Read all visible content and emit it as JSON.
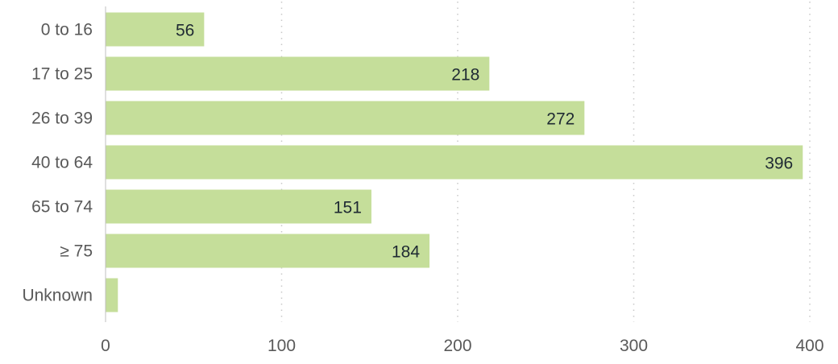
{
  "chart_data": {
    "type": "bar",
    "orientation": "horizontal",
    "title": "",
    "xlabel": "",
    "ylabel": "",
    "categories": [
      "0 to 16",
      "17 to 25",
      "26 to 39",
      "40 to 64",
      "65 to 74",
      "≥ 75",
      "Unknown"
    ],
    "values": [
      56,
      218,
      272,
      396,
      151,
      184,
      7
    ],
    "data_labels": [
      "56",
      "218",
      "272",
      "396",
      "151",
      "184",
      ""
    ],
    "x_ticks": [
      0,
      100,
      200,
      300,
      400
    ],
    "x_tick_labels": [
      "0",
      "100",
      "200",
      "300",
      "400"
    ],
    "xlim": [
      0,
      400
    ],
    "grid": "vertical dotted",
    "legend": "none",
    "colors": {
      "bar": "#c5de9a",
      "grid": "#c8c8c8",
      "axis": "#bfbfbf",
      "tick_text": "#595959",
      "data_text": "#1f2a33"
    }
  }
}
